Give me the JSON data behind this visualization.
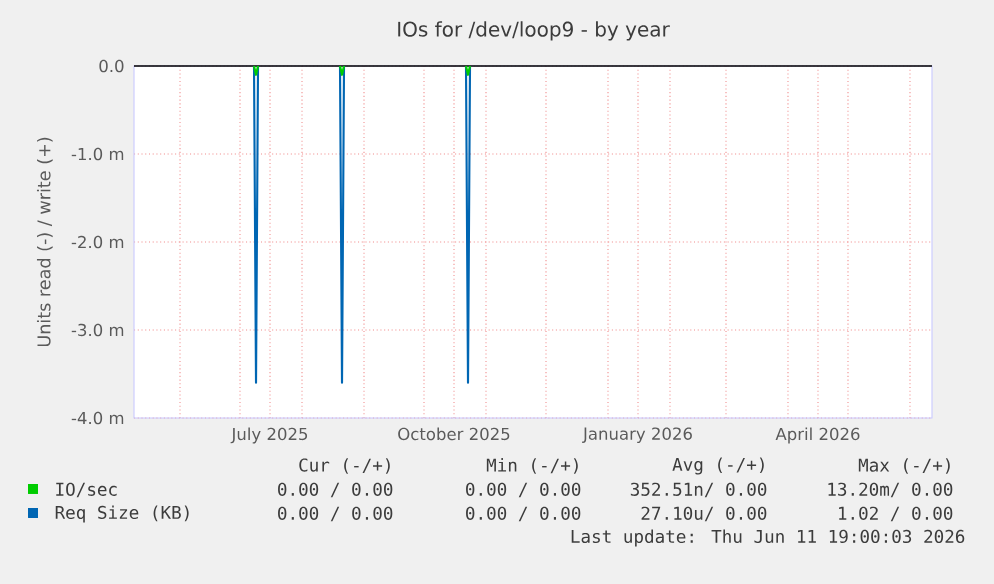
{
  "chart_data": {
    "type": "line",
    "title": "IOs for /dev/loop9 - by year",
    "ylabel": "Units read (-) / write (+)",
    "x": [
      "2025-07-08",
      "2025-07-09",
      "2025-07-10",
      "2025-07-30",
      "2025-08-20",
      "2025-08-21",
      "2025-08-22",
      "2025-09-20",
      "2025-10-22",
      "2025-10-23",
      "2025-10-24"
    ],
    "series": [
      {
        "name": "IO/sec",
        "color": "#00cc00",
        "values": [
          0,
          -0.1,
          0,
          null,
          0,
          -0.1,
          0,
          null,
          0,
          -0.1,
          0
        ]
      },
      {
        "name": "Req Size (KB)",
        "color": "#0066b3",
        "values": [
          0,
          -3.6,
          0,
          null,
          0,
          -3.6,
          0,
          null,
          0,
          -3.6,
          0
        ]
      }
    ],
    "xlim": [
      "2025-05-09",
      "2026-06-12"
    ],
    "xticks": [
      {
        "value": "2025-06-01",
        "label": null
      },
      {
        "value": "2025-07-01",
        "label": null
      },
      {
        "value": "2025-07-16",
        "label": "July 2025"
      },
      {
        "value": "2025-08-01",
        "label": null
      },
      {
        "value": "2025-09-01",
        "label": null
      },
      {
        "value": "2025-10-01",
        "label": null
      },
      {
        "value": "2025-10-16",
        "label": "October 2025"
      },
      {
        "value": "2025-11-01",
        "label": null
      },
      {
        "value": "2025-12-01",
        "label": null
      },
      {
        "value": "2026-01-01",
        "label": null
      },
      {
        "value": "2026-01-16",
        "label": "January 2026"
      },
      {
        "value": "2026-02-01",
        "label": null
      },
      {
        "value": "2026-03-01",
        "label": null
      },
      {
        "value": "2026-04-01",
        "label": null
      },
      {
        "value": "2026-04-16",
        "label": "April 2026"
      },
      {
        "value": "2026-05-01",
        "label": null
      },
      {
        "value": "2026-06-01",
        "label": null
      }
    ],
    "ylim": [
      -4,
      0
    ],
    "yticks": [
      {
        "value": -4,
        "label": "-4.0 m"
      },
      {
        "value": -3,
        "label": "-3.0 m"
      },
      {
        "value": -2,
        "label": "-2.0 m"
      },
      {
        "value": -1,
        "label": "-1.0 m"
      },
      {
        "value": 0,
        "label": "0.0"
      }
    ],
    "grid": true,
    "legend": "bottom",
    "annotations": [
      "Cur (-/+)",
      "Min (-/+)",
      "Avg (-/+)",
      "Max (-/+)",
      "0.00 / 0.00",
      "0.00 / 0.00",
      "352.51n/ 0.00",
      "13.20m/ 0.00",
      "0.00 / 0.00",
      "0.00 / 0.00",
      "27.10u/ 0.00",
      "1.02 / 0.00",
      "Last update: Thu Jun 11 19:00:03 2026"
    ]
  }
}
